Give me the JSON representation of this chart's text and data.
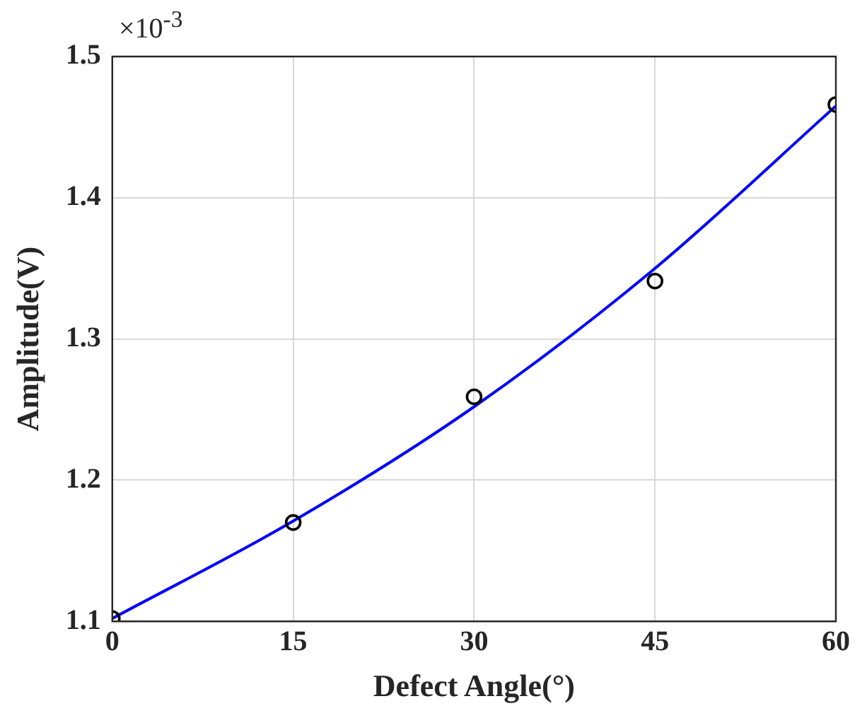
{
  "chart_data": {
    "type": "scatter",
    "xlabel": "Defect Angle(°)",
    "ylabel": "Amplitude(V)",
    "annotations": [
      "×10$^{-3}$"
    ],
    "xlim": [
      0,
      60
    ],
    "xticks": [
      0,
      15,
      30,
      45,
      60
    ],
    "ylim": [
      1.1,
      1.5
    ],
    "yticks": [
      1.1,
      1.2,
      1.3,
      1.4,
      1.5
    ],
    "grid": true,
    "series": [
      {
        "type": "line",
        "color": "#0000ff",
        "marker": "none",
        "line_style": "solid",
        "x": [
          0,
          15,
          30,
          45,
          60
        ],
        "values": [
          1.102,
          1.171,
          1.252,
          1.35,
          1.465
        ]
      },
      {
        "type": "scatter",
        "color": "#000000",
        "marker": "circle",
        "x": [
          0,
          15,
          30,
          45,
          60
        ],
        "values": [
          1.102,
          1.17,
          1.259,
          1.341,
          1.466
        ]
      }
    ]
  }
}
